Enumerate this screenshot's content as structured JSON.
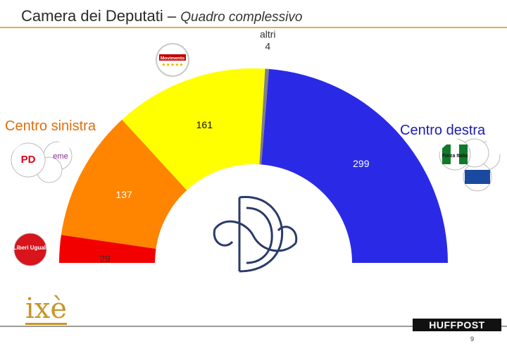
{
  "header": {
    "title": "Camera dei Deputati",
    "separator": "–",
    "subtitle": "Quadro complessivo"
  },
  "coalitions": {
    "left": {
      "label": "Centro sinistra",
      "color": "#e46c0a"
    },
    "right": {
      "label": "Centro destra",
      "color": "#1c1cb4"
    }
  },
  "chart_data": {
    "type": "pie",
    "subtype": "half-donut parliament chart",
    "categories": [
      "Liberi e Uguali",
      "Centro sinistra",
      "Movimento 5 Stelle",
      "altri",
      "Centro destra"
    ],
    "values": [
      29,
      137,
      161,
      4,
      299
    ],
    "colors": [
      "#f20000",
      "#ff8400",
      "#ffff00",
      "#7f7f7f",
      "#2a2ae6"
    ],
    "slice_labels": [
      "29",
      "137",
      "161",
      "altri 4",
      "299"
    ],
    "label_colors": [
      "#333333",
      "#ffffff",
      "#111111",
      "#333333",
      "#ffffff"
    ]
  },
  "footer": {
    "brand_left": "ixè",
    "brand_right": "HUFFPOST",
    "page_number": "9"
  },
  "logos": {
    "m5s": "Movimento",
    "leu": "Liberi Uguali",
    "pd": "PD",
    "cdx": "Forza Italia"
  }
}
